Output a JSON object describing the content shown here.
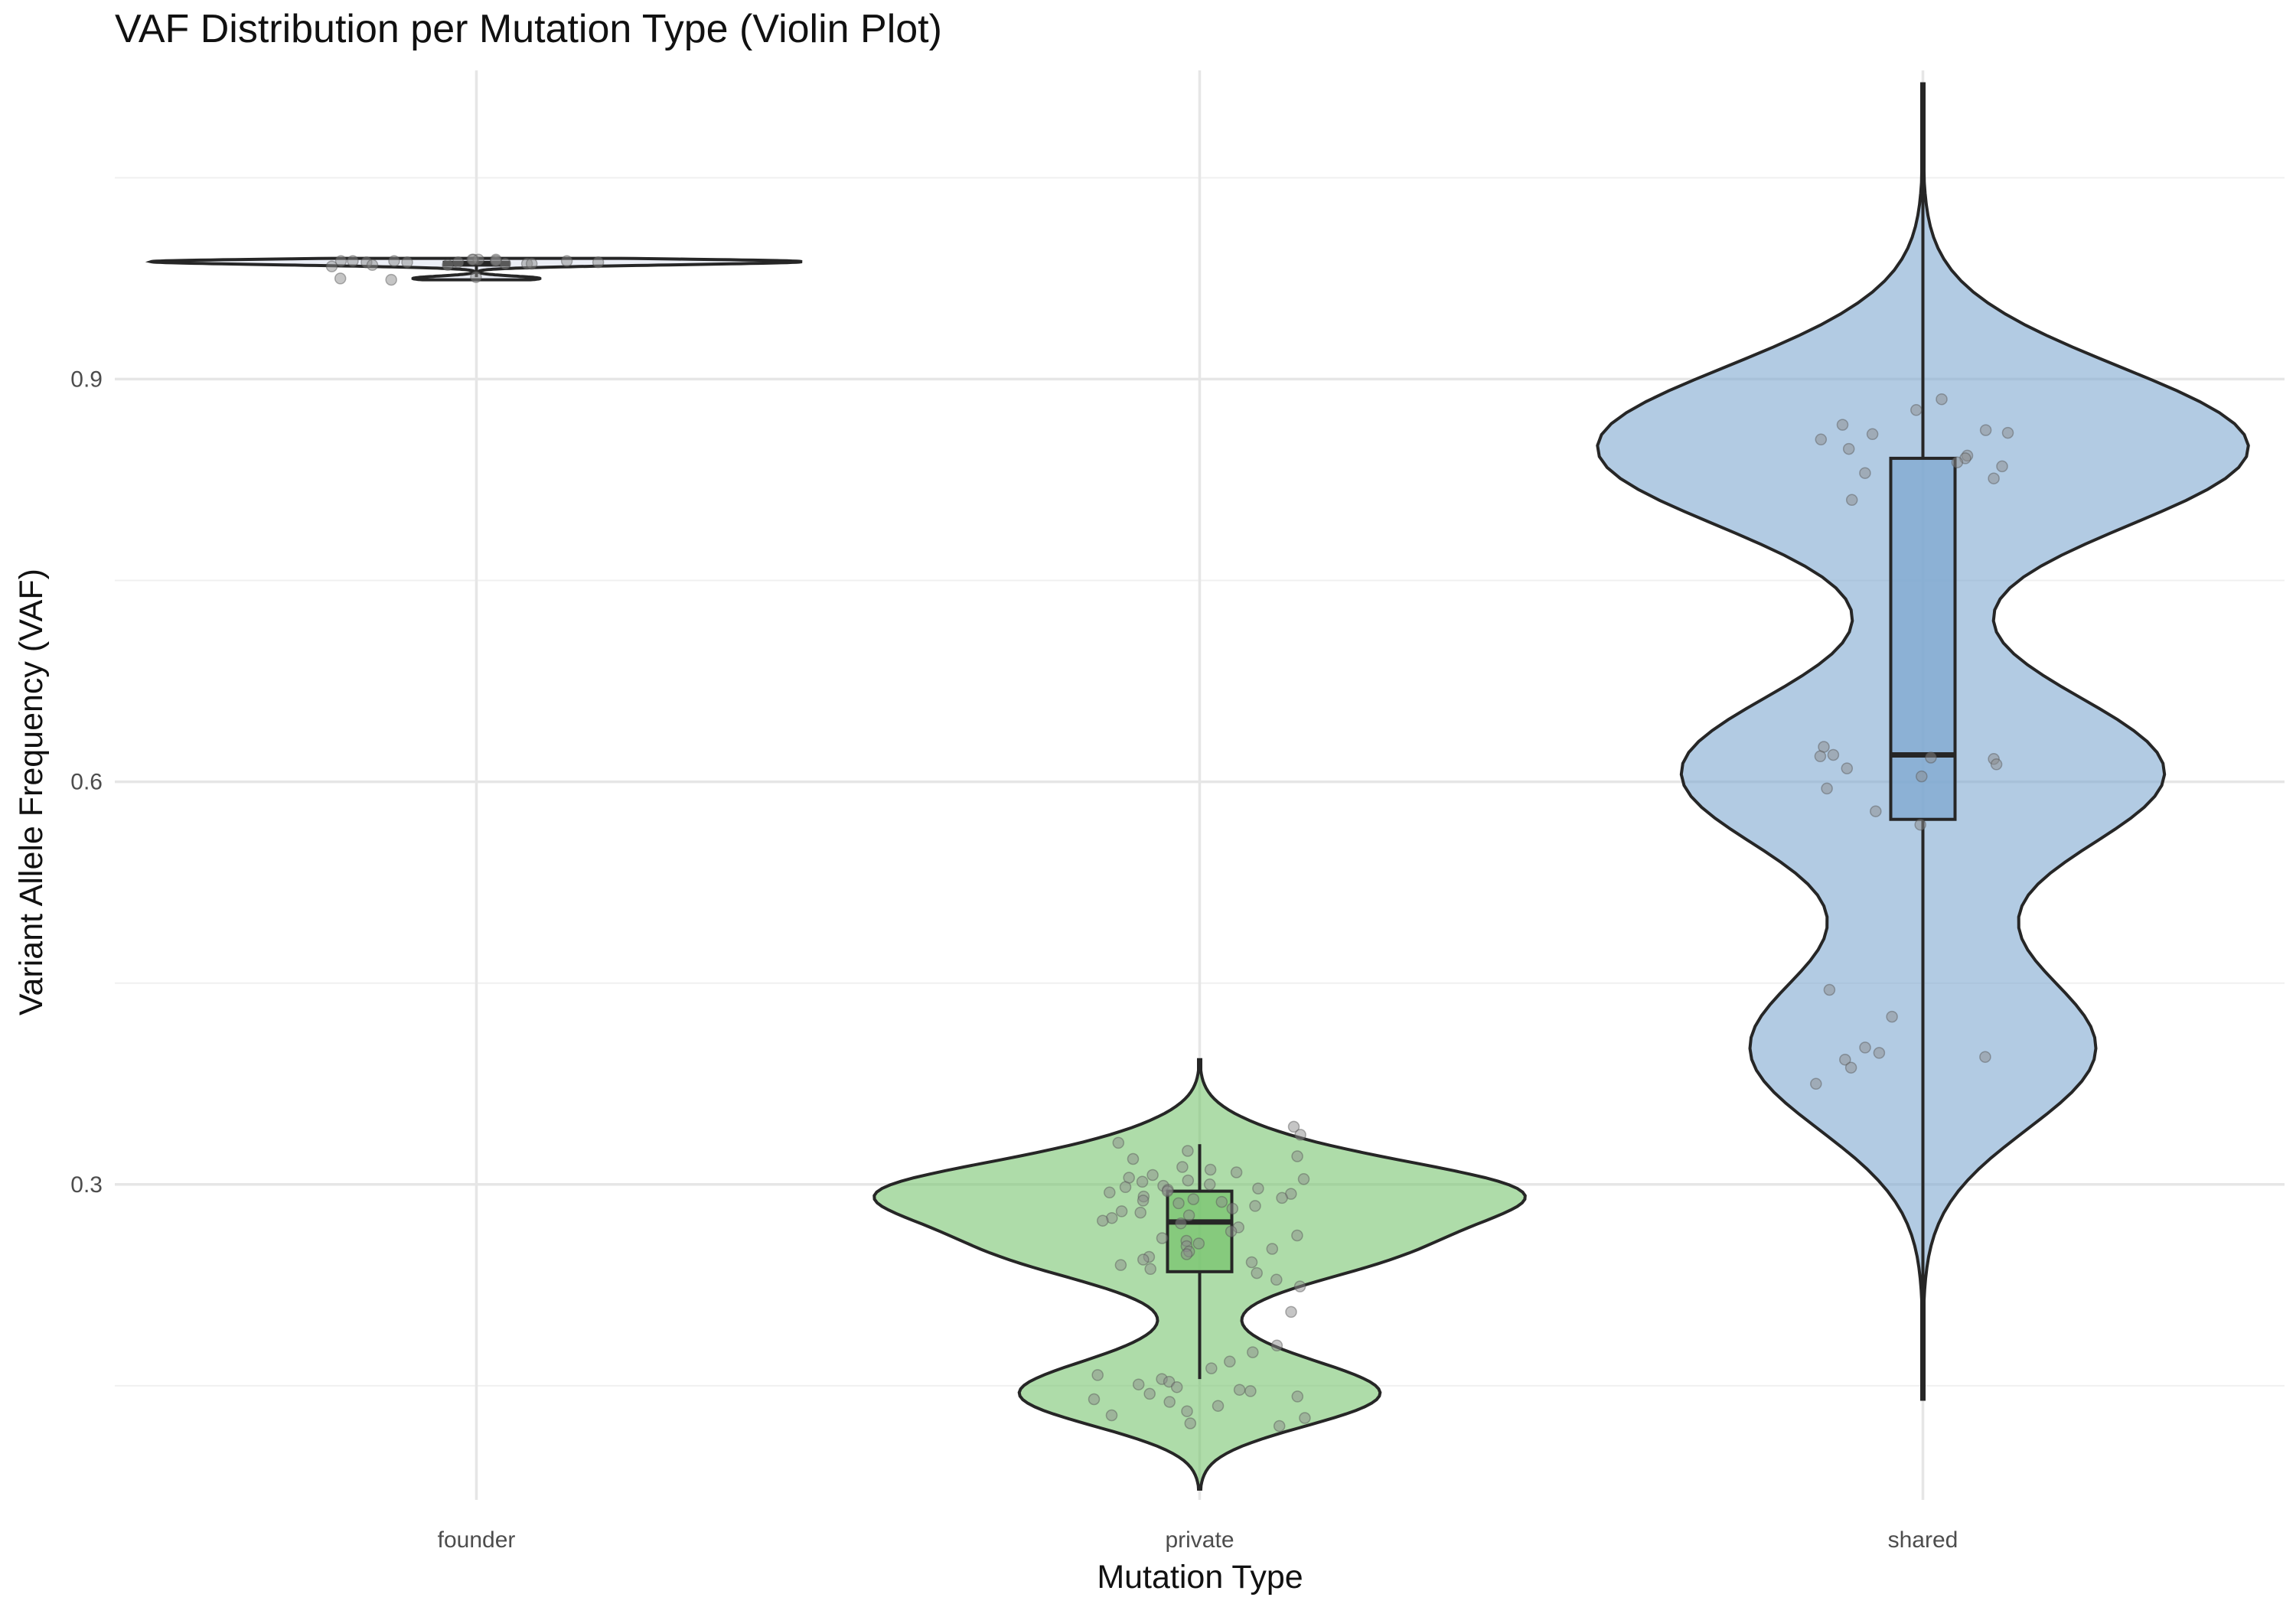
{
  "chart_data": {
    "type": "violin",
    "title": "VAF Distribution per Mutation Type (Violin Plot)",
    "xlabel": "Mutation Type",
    "ylabel": "Variant Allele Frequency (VAF)",
    "categories": [
      "founder",
      "private",
      "shared"
    ],
    "ylim": [
      0.065,
      1.13
    ],
    "yticks": [
      0.3,
      0.6,
      0.9
    ],
    "ytick_labels": [
      "0.3",
      "0.6",
      "0.9"
    ],
    "grid": true,
    "legend": "none",
    "colors": {
      "founder": "#dde3f0",
      "private": "#78c46f",
      "shared": "#7fa8d0",
      "outline": "#262626",
      "points": "#8c8c8c",
      "grid_major": "#e6e6e6",
      "grid_minor": "#f0f0f0"
    },
    "series": [
      {
        "category": "founder",
        "box": {
          "q1": 0.985,
          "median": 0.986,
          "q3": 0.987,
          "whisker_low": 0.976,
          "whisker_high": 0.988
        },
        "violin_range": [
          0.974,
          0.99
        ],
        "points": [
          0.989,
          0.989,
          0.988,
          0.988,
          0.987,
          0.989,
          0.988,
          0.987,
          0.986,
          0.985,
          0.987,
          0.988,
          0.986,
          0.975,
          0.976,
          0.974,
          0.986,
          0.987,
          0.988,
          0.989,
          0.985,
          0.984
        ]
      },
      {
        "category": "private",
        "box": {
          "q1": 0.235,
          "median": 0.272,
          "q3": 0.295,
          "whisker_low": 0.155,
          "whisker_high": 0.33
        },
        "violin_range": [
          0.073,
          0.393
        ],
        "points": [
          0.343,
          0.337,
          0.331,
          0.325,
          0.321,
          0.319,
          0.313,
          0.311,
          0.309,
          0.307,
          0.305,
          0.304,
          0.303,
          0.302,
          0.3,
          0.299,
          0.298,
          0.297,
          0.296,
          0.295,
          0.294,
          0.293,
          0.291,
          0.29,
          0.289,
          0.288,
          0.287,
          0.286,
          0.284,
          0.282,
          0.28,
          0.279,
          0.277,
          0.275,
          0.273,
          0.271,
          0.268,
          0.265,
          0.262,
          0.26,
          0.258,
          0.256,
          0.254,
          0.252,
          0.25,
          0.248,
          0.246,
          0.244,
          0.242,
          0.24,
          0.237,
          0.234,
          0.229,
          0.224,
          0.205,
          0.18,
          0.175,
          0.168,
          0.163,
          0.158,
          0.155,
          0.153,
          0.151,
          0.149,
          0.147,
          0.146,
          0.144,
          0.142,
          0.14,
          0.138,
          0.135,
          0.131,
          0.128,
          0.126,
          0.122,
          0.12
        ]
      },
      {
        "category": "shared",
        "box": {
          "q1": 0.572,
          "median": 0.62,
          "q3": 0.841,
          "whisker_low": 0.14,
          "whisker_high": 1.12
        },
        "violin_range": [
          0.14,
          1.12
        ],
        "points": [
          0.885,
          0.877,
          0.866,
          0.862,
          0.86,
          0.859,
          0.855,
          0.848,
          0.843,
          0.841,
          0.838,
          0.835,
          0.83,
          0.826,
          0.81,
          0.626,
          0.62,
          0.619,
          0.618,
          0.617,
          0.613,
          0.61,
          0.604,
          0.595,
          0.578,
          0.568,
          0.445,
          0.425,
          0.402,
          0.398,
          0.395,
          0.393,
          0.387,
          0.375
        ]
      }
    ]
  }
}
